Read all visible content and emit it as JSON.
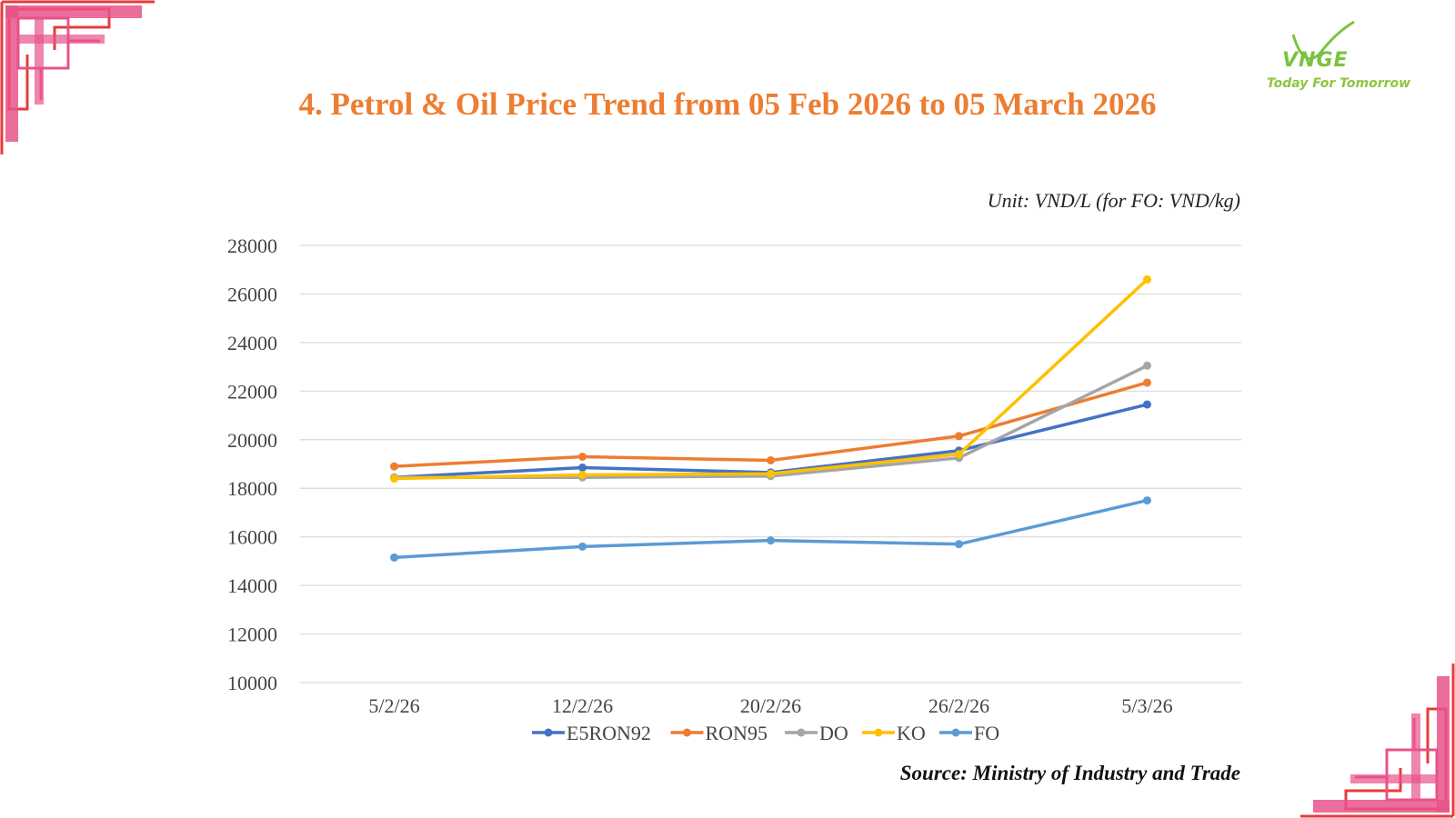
{
  "page": {
    "title": "4. Petrol & Oil Price Trend from 05 Feb 2026 to 05 March 2026",
    "unit_note": "Unit: VND/L (for FO: VND/kg)",
    "source": "Source: Ministry of Industry and Trade"
  },
  "logo": {
    "text": "VNGE",
    "tagline": "Today For Tomorrow",
    "color": "#7cc242"
  },
  "colors": {
    "title": "#ed7d31",
    "decoration_pink": "#e8538a",
    "decoration_red": "#e83b3b",
    "grid": "#d9d9d9"
  },
  "chart_data": {
    "type": "line",
    "title": "",
    "xlabel": "",
    "ylabel": "",
    "categories": [
      "5/2/26",
      "12/2/26",
      "20/2/26",
      "26/2/26",
      "5/3/26"
    ],
    "ylim": [
      10000,
      28000
    ],
    "yticks": [
      10000,
      12000,
      14000,
      16000,
      18000,
      20000,
      22000,
      24000,
      26000,
      28000
    ],
    "grid": true,
    "legend_position": "bottom",
    "series": [
      {
        "name": "E5RON92",
        "color": "#4472c4",
        "values": [
          18450,
          18850,
          18650,
          19550,
          21450
        ]
      },
      {
        "name": "RON95",
        "color": "#ed7d31",
        "values": [
          18900,
          19300,
          19150,
          20150,
          22350
        ]
      },
      {
        "name": "DO",
        "color": "#a5a5a5",
        "values": [
          18450,
          18450,
          18500,
          19250,
          23050
        ]
      },
      {
        "name": "KO",
        "color": "#ffc000",
        "values": [
          18400,
          18550,
          18600,
          19400,
          26600
        ]
      },
      {
        "name": "FO",
        "color": "#5b9bd5",
        "values": [
          15150,
          15600,
          15850,
          15700,
          17500
        ]
      }
    ]
  }
}
